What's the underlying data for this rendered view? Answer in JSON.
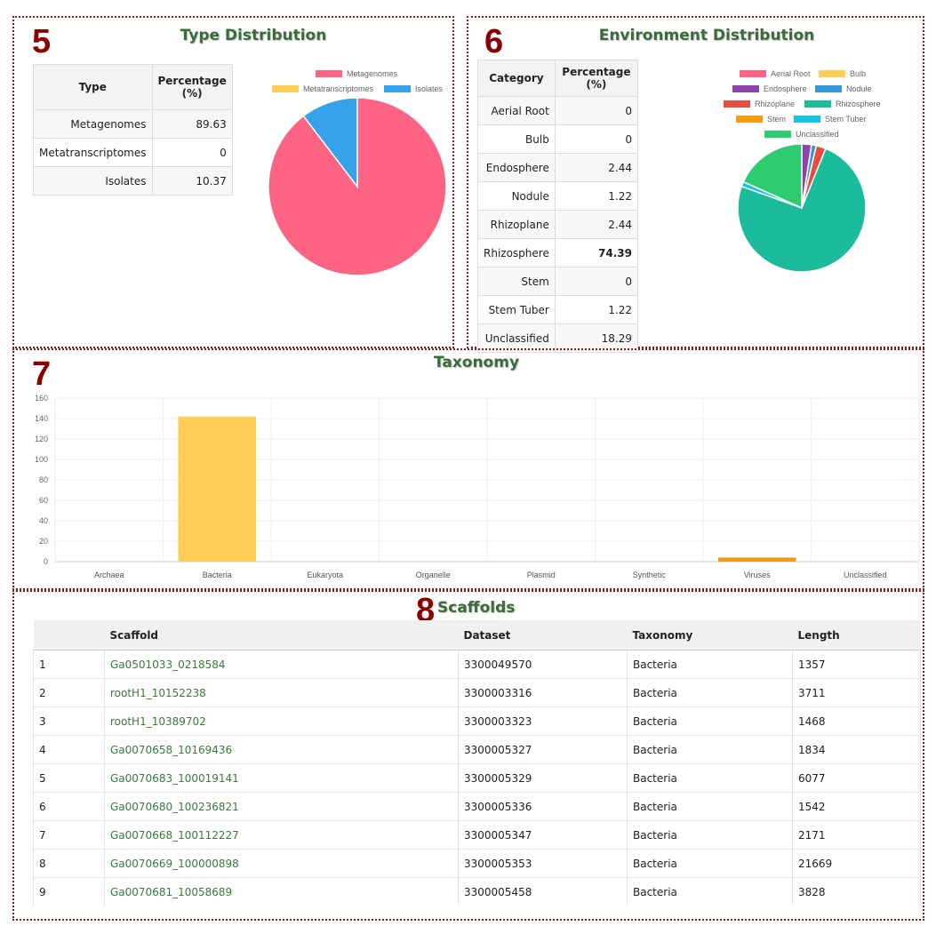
{
  "type_panel": {
    "number": "5",
    "title": "Type Distribution",
    "table_headers": [
      "Type",
      "Percentage (%)"
    ],
    "rows": [
      {
        "label": "Metagenomes",
        "value": "89.63"
      },
      {
        "label": "Metatranscriptomes",
        "value": "0"
      },
      {
        "label": "Isolates",
        "value": "10.37"
      }
    ],
    "chart_data": {
      "type": "pie",
      "categories": [
        "Metagenomes",
        "Metatranscriptomes",
        "Isolates"
      ],
      "values": [
        89.63,
        0,
        10.37
      ],
      "colors": [
        "#ff6384",
        "#ffce56",
        "#36a2eb"
      ]
    }
  },
  "env_panel": {
    "number": "6",
    "title": "Environment Distribution",
    "table_headers": [
      "Category",
      "Percentage (%)"
    ],
    "rows": [
      {
        "label": "Aerial Root",
        "value": "0"
      },
      {
        "label": "Bulb",
        "value": "0"
      },
      {
        "label": "Endosphere",
        "value": "2.44"
      },
      {
        "label": "Nodule",
        "value": "1.22"
      },
      {
        "label": "Rhizoplane",
        "value": "2.44"
      },
      {
        "label": "Rhizosphere",
        "value": "74.39"
      },
      {
        "label": "Stem",
        "value": "0"
      },
      {
        "label": "Stem Tuber",
        "value": "1.22"
      },
      {
        "label": "Unclassified",
        "value": "18.29"
      }
    ],
    "chart_data": {
      "type": "pie",
      "categories": [
        "Aerial Root",
        "Bulb",
        "Endosphere",
        "Nodule",
        "Rhizoplane",
        "Rhizosphere",
        "Stem",
        "Stem Tuber",
        "Unclassified"
      ],
      "values": [
        0,
        0,
        2.44,
        1.22,
        2.44,
        74.39,
        0,
        1.22,
        18.29
      ],
      "colors": [
        "#ff6384",
        "#ffce56",
        "#8e44ad",
        "#3498db",
        "#e74c3c",
        "#1abc9c",
        "#f39c12",
        "#17c3e0",
        "#2ecc71"
      ]
    }
  },
  "taxonomy_panel": {
    "number": "7",
    "title": "Taxonomy",
    "chart_data": {
      "type": "bar",
      "categories": [
        "Archaea",
        "Bacteria",
        "Eukaryota",
        "Organelle",
        "Plasmid",
        "Synthetic",
        "Viruses",
        "Unclassified"
      ],
      "values": [
        0,
        142,
        0,
        0,
        0,
        0,
        4,
        0
      ],
      "colors": [
        "#ff6384",
        "#ffce56",
        "#8e44ad",
        "#3498db",
        "#e74c3c",
        "#1abc9c",
        "#f39c12",
        "#17c3e0"
      ],
      "yticks": [
        "0",
        "20",
        "40",
        "60",
        "80",
        "100",
        "120",
        "140",
        "160"
      ],
      "ylim": [
        0,
        160
      ],
      "grid": true
    }
  },
  "scaffolds_panel": {
    "number": "8",
    "title": "Scaffolds",
    "headers": [
      "",
      "Scaffold",
      "Dataset",
      "Taxonomy",
      "Length"
    ],
    "rows": [
      [
        "1",
        "Ga0501033_0218584",
        "3300049570",
        "Bacteria",
        "1357"
      ],
      [
        "2",
        "rootH1_10152238",
        "3300003316",
        "Bacteria",
        "3711"
      ],
      [
        "3",
        "rootH1_10389702",
        "3300003323",
        "Bacteria",
        "1468"
      ],
      [
        "4",
        "Ga0070658_10169436",
        "3300005327",
        "Bacteria",
        "1834"
      ],
      [
        "5",
        "Ga0070683_100019141",
        "3300005329",
        "Bacteria",
        "6077"
      ],
      [
        "6",
        "Ga0070680_100236821",
        "3300005336",
        "Bacteria",
        "1542"
      ],
      [
        "7",
        "Ga0070668_100112227",
        "3300005347",
        "Bacteria",
        "2171"
      ],
      [
        "8",
        "Ga0070669_100000898",
        "3300005353",
        "Bacteria",
        "21669"
      ],
      [
        "9",
        "Ga0070681_10058689",
        "3300005458",
        "Bacteria",
        "3828"
      ]
    ]
  }
}
